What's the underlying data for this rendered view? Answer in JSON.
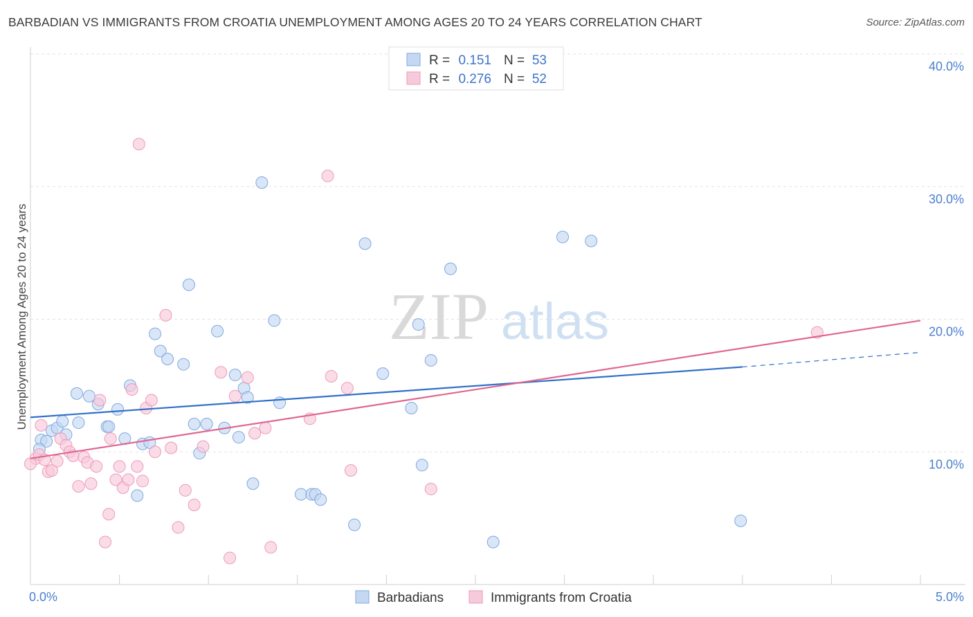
{
  "chart_data": {
    "type": "scatter",
    "title": "BARBADIAN VS IMMIGRANTS FROM CROATIA UNEMPLOYMENT AMONG AGES 20 TO 24 YEARS CORRELATION CHART",
    "source": "Source: ZipAtlas.com",
    "xlabel": "",
    "ylabel": "Unemployment Among Ages 20 to 24 years",
    "xlim": [
      0,
      5
    ],
    "ylim": [
      0,
      40
    ],
    "x_tick_labels": [
      "0.0%",
      "5.0%"
    ],
    "y_tick_labels": [
      "10.0%",
      "20.0%",
      "30.0%",
      "40.0%"
    ],
    "y_ticks": [
      10,
      20,
      30,
      40
    ],
    "watermark": {
      "zip": "ZIP",
      "atlas": "atlas"
    },
    "legend": [
      {
        "r_label": "R =",
        "r_value": "0.151",
        "n_label": "N =",
        "n_value": "53"
      },
      {
        "r_label": "R =",
        "r_value": "0.276",
        "n_label": "N =",
        "n_value": "52"
      }
    ],
    "series": [
      {
        "name": "Barbadians",
        "color": "#7fa8e0",
        "fill": "#c5d8f3",
        "line_color": "#2f6fca",
        "trend": {
          "x0": 0.0,
          "y0": 12.6,
          "x1": 4.0,
          "y1": 16.4,
          "dash_x1": 5.0,
          "dash_y1": 17.5
        },
        "points": [
          [
            0.06,
            10.9
          ],
          [
            0.09,
            10.8
          ],
          [
            0.05,
            10.2
          ],
          [
            0.12,
            11.6
          ],
          [
            0.15,
            11.8
          ],
          [
            0.2,
            11.3
          ],
          [
            0.18,
            12.3
          ],
          [
            0.27,
            12.2
          ],
          [
            0.26,
            14.4
          ],
          [
            0.33,
            14.2
          ],
          [
            0.38,
            13.6
          ],
          [
            0.43,
            11.9
          ],
          [
            0.44,
            11.9
          ],
          [
            0.49,
            13.2
          ],
          [
            0.53,
            11.0
          ],
          [
            0.56,
            15.0
          ],
          [
            0.6,
            6.7
          ],
          [
            0.63,
            10.6
          ],
          [
            0.67,
            10.7
          ],
          [
            0.7,
            18.9
          ],
          [
            0.73,
            17.6
          ],
          [
            0.77,
            17.0
          ],
          [
            0.86,
            16.6
          ],
          [
            0.89,
            22.6
          ],
          [
            0.92,
            12.1
          ],
          [
            0.95,
            9.9
          ],
          [
            0.99,
            12.1
          ],
          [
            1.05,
            19.1
          ],
          [
            1.09,
            11.8
          ],
          [
            1.15,
            15.8
          ],
          [
            1.17,
            11.1
          ],
          [
            1.2,
            14.8
          ],
          [
            1.22,
            14.1
          ],
          [
            1.25,
            7.6
          ],
          [
            1.3,
            30.3
          ],
          [
            1.37,
            19.9
          ],
          [
            1.4,
            13.7
          ],
          [
            1.52,
            6.8
          ],
          [
            1.58,
            6.8
          ],
          [
            1.6,
            6.8
          ],
          [
            1.63,
            6.4
          ],
          [
            1.82,
            4.5
          ],
          [
            1.88,
            25.7
          ],
          [
            1.98,
            15.9
          ],
          [
            2.14,
            13.3
          ],
          [
            2.18,
            19.6
          ],
          [
            2.2,
            9.0
          ],
          [
            2.25,
            16.9
          ],
          [
            2.36,
            23.8
          ],
          [
            2.6,
            3.2
          ],
          [
            2.99,
            26.2
          ],
          [
            3.15,
            25.9
          ],
          [
            3.99,
            4.8
          ]
        ]
      },
      {
        "name": "Immigrants from Croatia",
        "color": "#ee9ab5",
        "fill": "#f7cadb",
        "line_color": "#df6690",
        "trend": {
          "x0": 0.0,
          "y0": 9.5,
          "x1": 5.0,
          "y1": 19.9
        },
        "points": [
          [
            0.03,
            9.5
          ],
          [
            0.05,
            9.8
          ],
          [
            0.06,
            12.0
          ],
          [
            0.08,
            9.4
          ],
          [
            0.1,
            8.5
          ],
          [
            0.12,
            8.6
          ],
          [
            0.15,
            9.3
          ],
          [
            0.17,
            11.0
          ],
          [
            0.2,
            10.5
          ],
          [
            0.22,
            10.0
          ],
          [
            0.24,
            9.7
          ],
          [
            0.27,
            7.4
          ],
          [
            0.3,
            9.6
          ],
          [
            0.32,
            9.2
          ],
          [
            0.34,
            7.6
          ],
          [
            0.37,
            8.9
          ],
          [
            0.39,
            13.9
          ],
          [
            0.42,
            3.2
          ],
          [
            0.44,
            5.3
          ],
          [
            0.45,
            11.0
          ],
          [
            0.48,
            7.9
          ],
          [
            0.5,
            8.9
          ],
          [
            0.52,
            7.3
          ],
          [
            0.55,
            7.9
          ],
          [
            0.57,
            14.7
          ],
          [
            0.6,
            8.9
          ],
          [
            0.61,
            33.2
          ],
          [
            0.63,
            7.8
          ],
          [
            0.65,
            13.3
          ],
          [
            0.68,
            13.9
          ],
          [
            0.7,
            10.0
          ],
          [
            0.76,
            20.3
          ],
          [
            0.79,
            10.3
          ],
          [
            0.83,
            4.3
          ],
          [
            0.87,
            7.1
          ],
          [
            0.92,
            6.0
          ],
          [
            0.97,
            10.4
          ],
          [
            1.07,
            16.0
          ],
          [
            1.12,
            2.0
          ],
          [
            1.15,
            14.2
          ],
          [
            1.22,
            15.6
          ],
          [
            1.26,
            11.4
          ],
          [
            1.32,
            11.8
          ],
          [
            1.35,
            2.8
          ],
          [
            1.57,
            12.5
          ],
          [
            1.67,
            30.8
          ],
          [
            1.69,
            15.7
          ],
          [
            1.78,
            14.8
          ],
          [
            1.8,
            8.6
          ],
          [
            2.25,
            7.2
          ],
          [
            4.42,
            19.0
          ],
          [
            0.0,
            9.1
          ]
        ]
      }
    ]
  }
}
